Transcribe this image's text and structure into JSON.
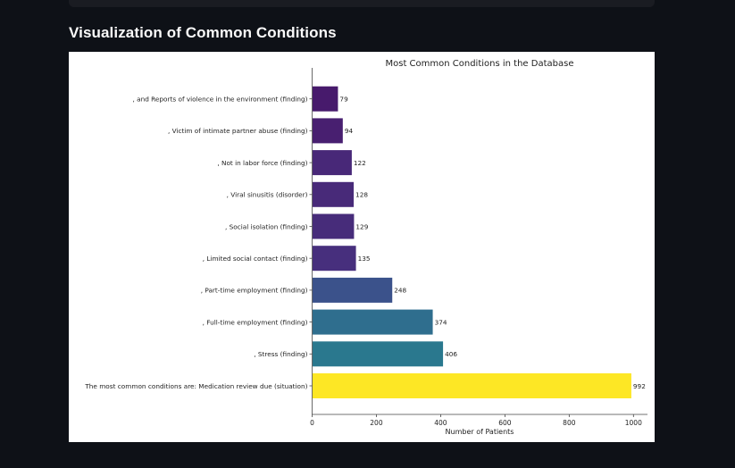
{
  "page": {
    "section_title": "Visualization of Common Conditions"
  },
  "chart_data": {
    "type": "bar",
    "orientation": "horizontal",
    "title": "Most Common Conditions in the Database",
    "xlabel": "Number of Patients",
    "ylabel": "",
    "xlim": [
      0,
      1045
    ],
    "xticks": [
      0,
      200,
      400,
      600,
      800,
      1000
    ],
    "categories": [
      "The most common conditions are: Medication review due (situation)",
      ", Stress (finding)",
      ", Full-time employment (finding)",
      ", Part-time employment (finding)",
      ", Limited social contact (finding)",
      ", Social isolation (finding)",
      ", Viral sinusitis (disorder)",
      ", Not in labor force (finding)",
      ", Victim of intimate partner abuse (finding)",
      ", and Reports of violence in the environment (finding)"
    ],
    "values": [
      992,
      406,
      374,
      248,
      135,
      129,
      128,
      122,
      94,
      79
    ],
    "colors": [
      "#fde725",
      "#2a788e",
      "#2f6e8e",
      "#3b528b",
      "#472f7d",
      "#472c7a",
      "#482a79",
      "#482878",
      "#481f70",
      "#471a6c"
    ]
  }
}
